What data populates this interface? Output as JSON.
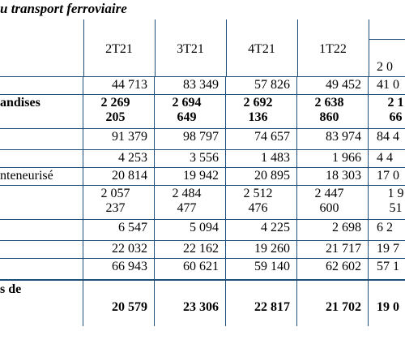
{
  "title": "u transport ferroviaire",
  "headers": [
    "2T21",
    "3T21",
    "4T21",
    "1T22"
  ],
  "partial_header_bottom": "2 0",
  "rows": [
    {
      "label": "",
      "values": [
        "44 713",
        "83 349",
        "57 826",
        "49 452",
        "41 0"
      ],
      "bold": false,
      "multi": false
    },
    {
      "label": "andises",
      "values": [
        "2 269\n205",
        "2 694\n649",
        "2 692\n136",
        "2 638\n860",
        "2 1\n66"
      ],
      "bold": true,
      "multi": true
    },
    {
      "label": "",
      "values": [
        "91 379",
        "98 797",
        "74 657",
        "83 974",
        "84 4"
      ],
      "bold": false,
      "multi": false
    },
    {
      "label": "",
      "values": [
        "4 253",
        "3 556",
        "1 483",
        "1 966",
        "4 4"
      ],
      "bold": false,
      "multi": false
    },
    {
      "label": "nteneurisé",
      "values": [
        "20 814",
        "19 942",
        "20 895",
        "18 303",
        "17 0"
      ],
      "bold": false,
      "multi": false
    },
    {
      "label": "",
      "values": [
        "2 057\n237",
        "2 484\n477",
        "2 512\n476",
        "2 447\n600",
        "1 9\n51"
      ],
      "bold": false,
      "multi": true
    },
    {
      "label": "",
      "values": [
        "6 547",
        "5 094",
        "4 225",
        "2 698",
        "6 2"
      ],
      "bold": false,
      "multi": false
    },
    {
      "label": "",
      "values": [
        "22 032",
        "22 162",
        "19 260",
        "21 717",
        "19 7"
      ],
      "bold": false,
      "multi": false
    },
    {
      "label": "",
      "values": [
        "66 943",
        "60 621",
        "59 140",
        "62 602",
        "57 1"
      ],
      "bold": false,
      "multi": false
    },
    {
      "label": "s de",
      "values": [
        "20 579",
        "23 306",
        "22 817",
        "21 702",
        "19 0"
      ],
      "bold": true,
      "multi": false
    }
  ]
}
